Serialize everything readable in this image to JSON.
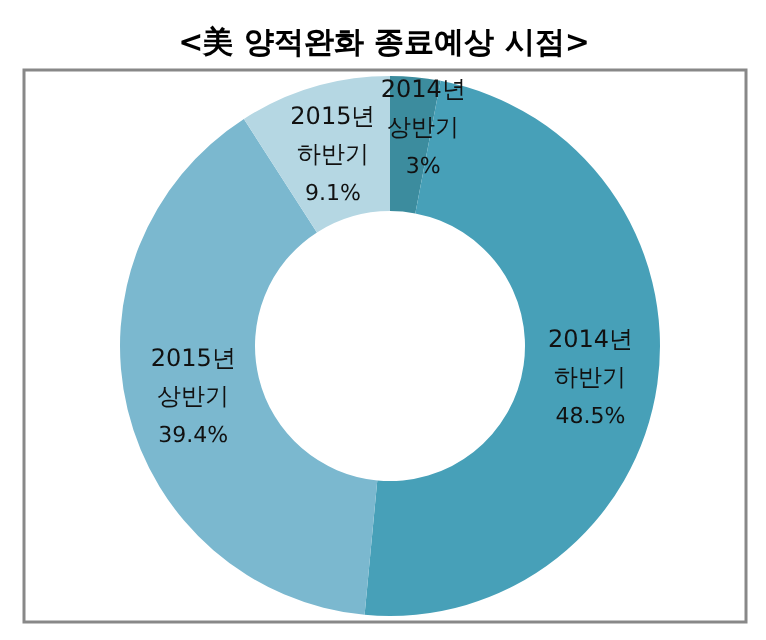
{
  "chart_data": {
    "type": "donut",
    "title": "<美 양적완화 종료예상 시점>",
    "categories": [
      "2014년 상반기",
      "2014년 하반기",
      "2015년 상반기",
      "2015년 하반기"
    ],
    "values": [
      3,
      48.5,
      39.4,
      9.1
    ],
    "value_labels": [
      "3%",
      "48.5%",
      "39.4%",
      "9.1%"
    ],
    "colors": [
      "#3c8c9e",
      "#47a0b8",
      "#7bb8cf",
      "#b5d7e3"
    ]
  }
}
